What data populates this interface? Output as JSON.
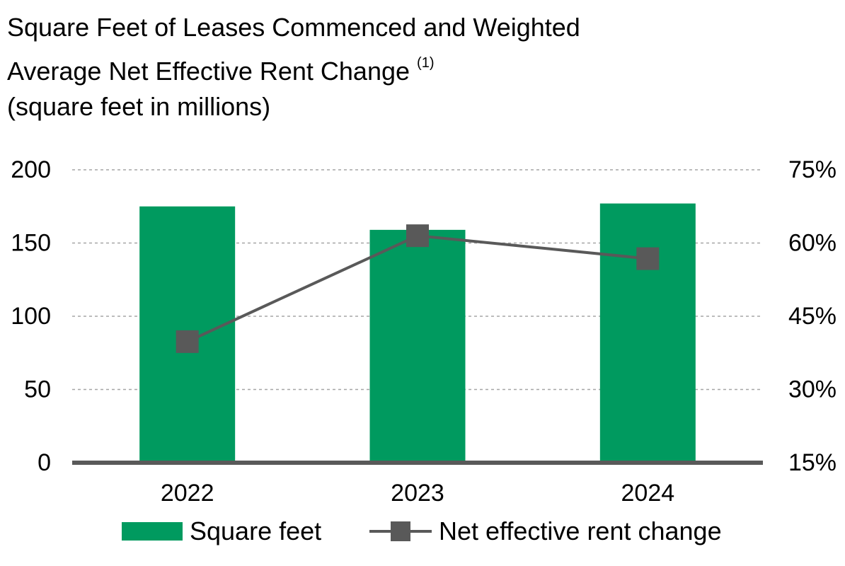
{
  "chart_data": {
    "type": "bar+line",
    "title_line1": "Square Feet of Leases Commenced and Weighted",
    "title_line2": "Average Net Effective Rent Change",
    "title_footnote": "(1)",
    "subtitle": "(square feet in millions)",
    "categories": [
      "2022",
      "2023",
      "2024"
    ],
    "series": [
      {
        "name": "Square feet",
        "type": "bar",
        "axis": "left",
        "color": "#009a5f",
        "values": [
          175,
          159,
          177
        ]
      },
      {
        "name": "Net effective rent change",
        "type": "line",
        "axis": "right",
        "color": "#595959",
        "values": [
          39.8,
          61.5,
          56.8
        ]
      }
    ],
    "y_left": {
      "min": 0,
      "max": 200,
      "ticks": [
        0,
        50,
        100,
        150,
        200
      ],
      "tick_labels": [
        "0",
        "50",
        "100",
        "150",
        "200"
      ]
    },
    "y_right": {
      "min": 15,
      "max": 75,
      "ticks": [
        15,
        30,
        45,
        60,
        75
      ],
      "tick_labels": [
        "15%",
        "30%",
        "45%",
        "60%",
        "75%"
      ]
    },
    "grid": true,
    "legend": {
      "position": "bottom",
      "items": [
        "Square feet",
        "Net effective rent change"
      ]
    }
  }
}
